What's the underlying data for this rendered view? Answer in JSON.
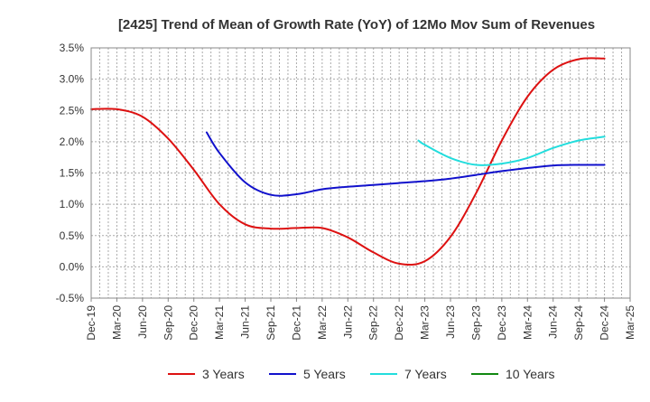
{
  "chart_data": {
    "type": "line",
    "title": "[2425]  Trend of Mean of Growth Rate (YoY) of 12Mo Mov Sum of Revenues",
    "xlabel": "",
    "ylabel": "",
    "ylim": [
      -0.5,
      3.5
    ],
    "yticks": [
      3.5,
      3.0,
      2.5,
      2.0,
      1.5,
      1.0,
      0.5,
      0.0,
      -0.5
    ],
    "ytick_labels": [
      "3.5%",
      "3.0%",
      "2.5%",
      "2.0%",
      "1.5%",
      "1.0%",
      "0.5%",
      "0.0%",
      "-0.5%"
    ],
    "x_categories": [
      "Dec-19",
      "Mar-20",
      "Jun-20",
      "Sep-20",
      "Dec-20",
      "Mar-21",
      "Jun-21",
      "Sep-21",
      "Dec-21",
      "Mar-22",
      "Jun-22",
      "Sep-22",
      "Dec-22",
      "Mar-23",
      "Jun-23",
      "Sep-23",
      "Dec-23",
      "Mar-24",
      "Jun-24",
      "Sep-24",
      "Dec-24",
      "Mar-25"
    ],
    "grid": true,
    "legend_position": "bottom",
    "series": [
      {
        "name": "3 Years",
        "color": "#dd1111",
        "points": [
          [
            0,
            2.52
          ],
          [
            1,
            2.52
          ],
          [
            2,
            2.4
          ],
          [
            3,
            2.05
          ],
          [
            4,
            1.55
          ],
          [
            5,
            1.0
          ],
          [
            6,
            0.68
          ],
          [
            7,
            0.61
          ],
          [
            8,
            0.62
          ],
          [
            9,
            0.62
          ],
          [
            10,
            0.47
          ],
          [
            11,
            0.23
          ],
          [
            12,
            0.05
          ],
          [
            13,
            0.09
          ],
          [
            14,
            0.48
          ],
          [
            15,
            1.18
          ],
          [
            16,
            2.02
          ],
          [
            17,
            2.72
          ],
          [
            18,
            3.15
          ],
          [
            19,
            3.32
          ],
          [
            20,
            3.33
          ]
        ]
      },
      {
        "name": "5 Years",
        "color": "#1111cc",
        "points": [
          [
            4.5,
            2.15
          ],
          [
            5,
            1.82
          ],
          [
            6,
            1.35
          ],
          [
            7,
            1.15
          ],
          [
            8,
            1.16
          ],
          [
            9,
            1.24
          ],
          [
            10,
            1.28
          ],
          [
            11,
            1.31
          ],
          [
            12,
            1.34
          ],
          [
            13,
            1.37
          ],
          [
            14,
            1.41
          ],
          [
            15,
            1.47
          ],
          [
            16,
            1.53
          ],
          [
            17,
            1.58
          ],
          [
            18,
            1.62
          ],
          [
            19,
            1.63
          ],
          [
            20,
            1.63
          ]
        ]
      },
      {
        "name": "7 Years",
        "color": "#22dddd",
        "points": [
          [
            12.75,
            2.02
          ],
          [
            13,
            1.95
          ],
          [
            14,
            1.74
          ],
          [
            15,
            1.63
          ],
          [
            16,
            1.65
          ],
          [
            17,
            1.74
          ],
          [
            18,
            1.9
          ],
          [
            19,
            2.02
          ],
          [
            20,
            2.08
          ]
        ]
      },
      {
        "name": "10 Years",
        "color": "#118811",
        "points": []
      }
    ]
  }
}
